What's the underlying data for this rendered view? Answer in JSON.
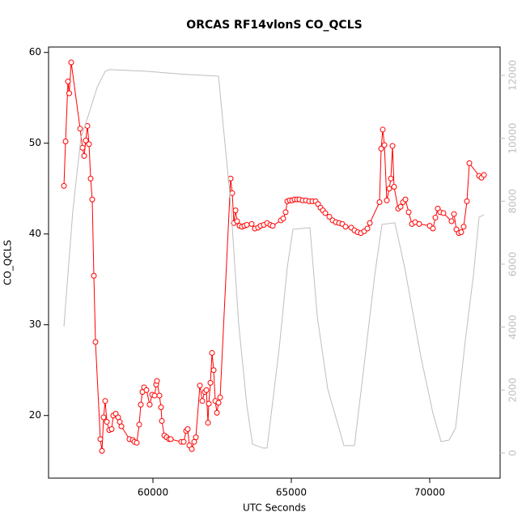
{
  "chart_data": {
    "type": "line",
    "title": "ORCAS RF14vlonS CO_QCLS",
    "xlabel": "UTC Seconds",
    "ylabel": "CO_QCLS",
    "xlim": [
      56228,
      72544
    ],
    "ylim": [
      13.1,
      60.6
    ],
    "y2lim": [
      -800,
      12900
    ],
    "xticks": [
      60000,
      65000,
      70000
    ],
    "yticks": [
      20,
      30,
      40,
      50,
      60
    ],
    "y2ticks": [
      0,
      2000,
      4000,
      6000,
      8000,
      10000,
      12000
    ],
    "series": [
      {
        "color": "#ff0000",
        "markers": true,
        "x": [
          56784,
          56842,
          56930,
          56974,
          57047,
          57368,
          57456,
          57515,
          57573,
          57632,
          57690,
          57749,
          57807,
          57865,
          57924,
          58099,
          58158,
          58216,
          58275,
          58333,
          58421,
          58509,
          58567,
          58655,
          58743,
          58801,
          58860,
          59152,
          59269,
          59328,
          59415,
          59503,
          59562,
          59620,
          59679,
          59766,
          59883,
          59971,
          60059,
          60117,
          60146,
          60234,
          60292,
          60322,
          60409,
          60497,
          60585,
          60643,
          61023,
          61111,
          61199,
          61257,
          61316,
          61403,
          61491,
          61550,
          61696,
          61784,
          61872,
          61930,
          61989,
          62018,
          62077,
          62135,
          62194,
          62252,
          62311,
          62369,
          62428,
          62807,
          62866,
          62924,
          62983,
          63041,
          63129,
          63216,
          63304,
          63392,
          63567,
          63684,
          63801,
          63889,
          64006,
          64123,
          64240,
          64327,
          64620,
          64708,
          64795,
          64854,
          64942,
          65030,
          65117,
          65205,
          65293,
          65410,
          65527,
          65644,
          65761,
          65878,
          65965,
          66053,
          66141,
          66228,
          66374,
          66491,
          66608,
          66725,
          66842,
          66959,
          67164,
          67281,
          67398,
          67515,
          67632,
          67749,
          67836,
          68187,
          68246,
          68304,
          68363,
          68450,
          68538,
          68596,
          68655,
          68713,
          68860,
          68947,
          69035,
          69123,
          69240,
          69357,
          69474,
          69620,
          70001,
          70117,
          70205,
          70293,
          70380,
          70497,
          70790,
          70877,
          70965,
          71053,
          71140,
          71228,
          71345,
          71433,
          71784,
          71872,
          71960
        ],
        "values": [
          45.3,
          50.2,
          56.8,
          55.5,
          58.9,
          51.6,
          49.5,
          48.6,
          50.3,
          51.9,
          49.9,
          46.1,
          43.8,
          35.4,
          28.1,
          17.4,
          16.1,
          19.8,
          21.6,
          19.3,
          18.4,
          18.5,
          20.0,
          20.2,
          19.8,
          19.3,
          18.8,
          17.4,
          17.3,
          17.1,
          17.0,
          19.0,
          21.2,
          22.6,
          23.1,
          22.8,
          21.2,
          22.3,
          22.2,
          23.4,
          23.8,
          22.2,
          20.9,
          19.4,
          17.8,
          17.6,
          17.4,
          17.4,
          17.1,
          17.1,
          18.3,
          18.5,
          16.7,
          16.3,
          17.1,
          17.6,
          23.3,
          21.6,
          22.6,
          22.8,
          19.2,
          21.3,
          23.6,
          26.9,
          25.0,
          21.6,
          20.3,
          21.4,
          22.0,
          46.1,
          44.5,
          41.2,
          42.6,
          41.4,
          40.9,
          40.8,
          40.9,
          41.0,
          41.1,
          40.6,
          40.7,
          40.9,
          41.0,
          41.2,
          41.0,
          40.9,
          41.5,
          41.7,
          42.4,
          43.6,
          43.7,
          43.7,
          43.8,
          43.8,
          43.8,
          43.7,
          43.7,
          43.6,
          43.6,
          43.6,
          43.3,
          42.9,
          42.6,
          42.3,
          41.9,
          41.5,
          41.3,
          41.2,
          41.1,
          40.8,
          40.7,
          40.4,
          40.2,
          40.1,
          40.3,
          40.6,
          41.2,
          43.5,
          49.4,
          51.5,
          49.8,
          43.7,
          45.0,
          46.1,
          49.7,
          45.2,
          42.8,
          43.0,
          43.5,
          43.8,
          42.4,
          41.1,
          41.3,
          41.1,
          40.9,
          40.6,
          41.8,
          42.8,
          42.4,
          42.3,
          41.4,
          42.2,
          40.5,
          40.1,
          40.2,
          40.8,
          43.6,
          47.8,
          46.4,
          46.2,
          46.5
        ]
      },
      {
        "color": "#bebebe",
        "axis": "y2",
        "x": [
          56784,
          57106,
          57398,
          57690,
          57983,
          58275,
          58421,
          59737,
          61199,
          62369,
          62807,
          63099,
          63392,
          63596,
          63976,
          64123,
          64562,
          64854,
          65059,
          65673,
          65936,
          66316,
          66901,
          67281,
          67632,
          68012,
          68275,
          68743,
          69094,
          69679,
          70117,
          70410,
          70702,
          70936,
          71287,
          71579,
          71784,
          71960
        ],
        "values": [
          4018,
          7700,
          10018,
          10790,
          11615,
          12130,
          12181,
          12130,
          12027,
          11975,
          7958,
          4095,
          1519,
          283,
          155,
          155,
          3322,
          5898,
          7108,
          7160,
          4352,
          2035,
          232,
          232,
          2807,
          5640,
          7262,
          7314,
          5898,
          3065,
          1262,
          361,
          412,
          798,
          3580,
          5640,
          7494,
          7571
        ]
      }
    ]
  }
}
